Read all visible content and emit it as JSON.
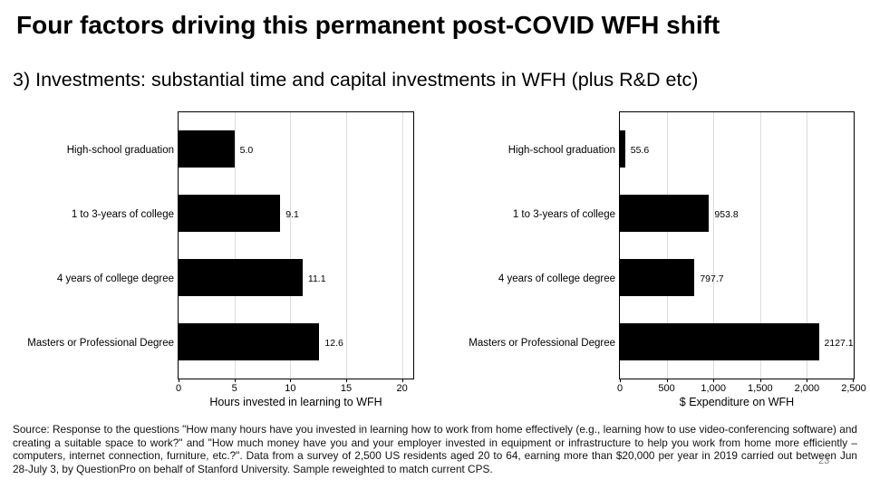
{
  "slide": {
    "title": "Four factors driving this permanent post-COVID WFH shift",
    "subtitle": "3) Investments: substantial time and capital investments in WFH (plus R&D etc)",
    "page_number": "23",
    "source_note": "Source: Response to the questions \"How many hours have you invested in learning how to work from home effectively (e.g., learning how to use video-conferencing software) and creating a suitable space to work?\" and \"How much money have you and your employer invested in equipment or infrastructure to help you work from home more efficiently – computers, internet connection, furniture, etc.?\". Data from a survey of 2,500 US residents aged 20 to 64, earning more than $20,000 per year in 2019 carried out between Jun 28-July 3, by QuestionPro on behalf of Stanford University. Sample reweighted to match current CPS."
  },
  "chart_data": [
    {
      "type": "bar",
      "orientation": "horizontal",
      "title": "",
      "categories": [
        "High-school graduation",
        "1 to 3-years of college",
        "4 years of college degree",
        "Masters or Professional Degree"
      ],
      "values": [
        5.0,
        9.1,
        11.1,
        12.6
      ],
      "value_labels": [
        "5.0",
        "9.1",
        "11.1",
        "12.6"
      ],
      "xlabel": "Hours invested in learning to WFH",
      "ylabel": "",
      "xlim": [
        0,
        21
      ],
      "ticks": [
        0,
        5,
        10,
        15,
        20
      ],
      "tick_labels": [
        "0",
        "5",
        "10",
        "15",
        "20"
      ],
      "bar_color": "#000000",
      "grid": true,
      "legend_position": "none"
    },
    {
      "type": "bar",
      "orientation": "horizontal",
      "title": "",
      "categories": [
        "High-school graduation",
        "1 to 3-years of college",
        "4 years of college degree",
        "Masters or Professional Degree"
      ],
      "values": [
        55.6,
        953.8,
        797.7,
        2127.1
      ],
      "value_labels": [
        "55.6",
        "953.8",
        "797.7",
        "2127.1"
      ],
      "xlabel": "$ Expenditure on WFH",
      "ylabel": "",
      "xlim": [
        0,
        2500
      ],
      "ticks": [
        0,
        500,
        1000,
        1500,
        2000,
        2500
      ],
      "tick_labels": [
        "0",
        "500",
        "1,000",
        "1,500",
        "2,000",
        "2,500"
      ],
      "bar_color": "#000000",
      "grid": true,
      "legend_position": "none"
    }
  ]
}
